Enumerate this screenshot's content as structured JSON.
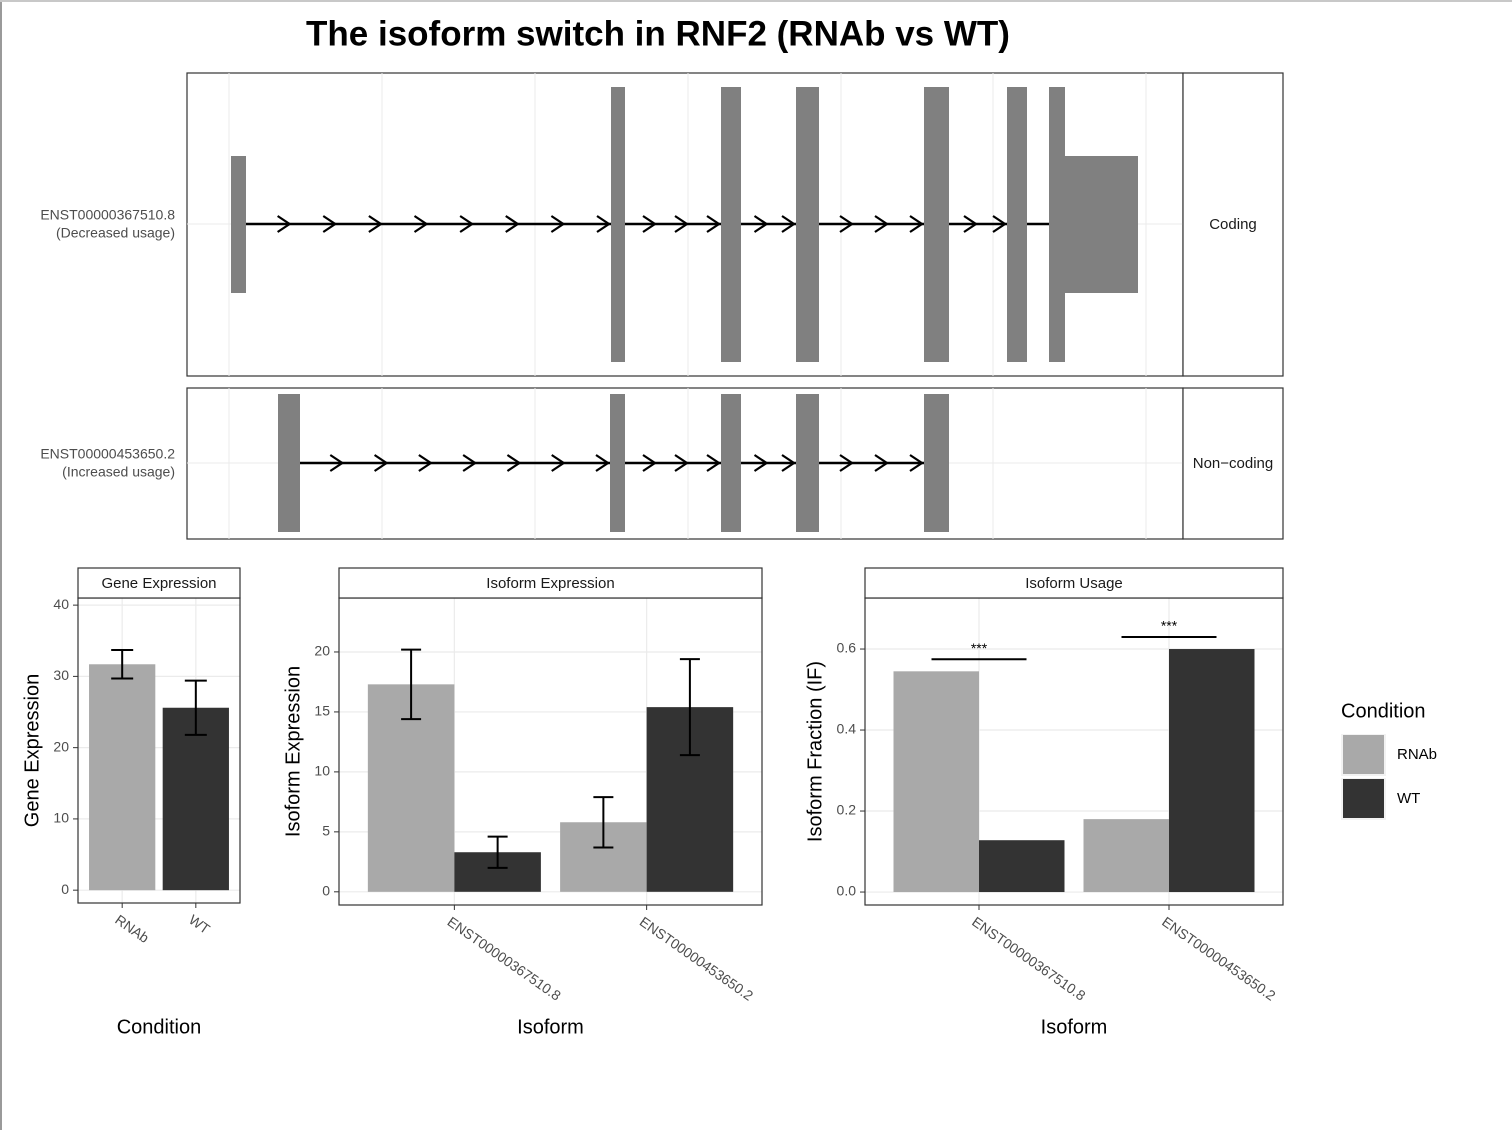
{
  "title": "The isoform switch in RNF2 (RNAb vs WT)",
  "transcripts": [
    {
      "name": "ENST00000367510.8",
      "usage": "(Decreased usage)",
      "type": "Coding"
    },
    {
      "name": "ENST00000453650.2",
      "usage": "(Increased usage)",
      "type": "Non−coding"
    }
  ],
  "chart_data": [
    {
      "type": "bar",
      "title": "Gene Expression",
      "xlabel": "Condition",
      "ylabel": "Gene Expression",
      "categories": [
        "RNAb",
        "WT"
      ],
      "values": [
        31.7,
        25.6
      ],
      "errors": [
        2.0,
        3.8
      ],
      "colors": [
        "#a9a9a9",
        "#333333"
      ],
      "ylim": [
        -1.8,
        41
      ],
      "yticks": [
        0,
        10,
        20,
        30,
        40
      ],
      "grid": true
    },
    {
      "type": "grouped_bar",
      "title": "Isoform Expression",
      "xlabel": "Isoform",
      "ylabel": "Isoform Expression",
      "categories": [
        "ENST00000367510.8",
        "ENST00000453650.2"
      ],
      "series": [
        {
          "name": "RNAb",
          "color": "#a9a9a9",
          "values": [
            17.3,
            5.8
          ],
          "errors": [
            2.9,
            2.1
          ]
        },
        {
          "name": "WT",
          "color": "#333333",
          "values": [
            3.3,
            15.4
          ],
          "errors": [
            1.3,
            4.0
          ]
        }
      ],
      "ylim": [
        -1.1,
        24.5
      ],
      "yticks": [
        0,
        5,
        10,
        15,
        20
      ],
      "grid": true
    },
    {
      "type": "grouped_bar",
      "title": "Isoform Usage",
      "xlabel": "Isoform",
      "ylabel": "Isoform Fraction (IF)",
      "categories": [
        "ENST00000367510.8",
        "ENST00000453650.2"
      ],
      "series": [
        {
          "name": "RNAb",
          "color": "#a9a9a9",
          "values": [
            0.545,
            0.18
          ]
        },
        {
          "name": "WT",
          "color": "#333333",
          "values": [
            0.128,
            0.6
          ]
        }
      ],
      "significance": [
        "***",
        "***"
      ],
      "ylim": [
        -0.032,
        0.726
      ],
      "yticks": [
        {
          "value": 0,
          "label": "0.0"
        },
        {
          "value": 0.2,
          "label": "0.2"
        },
        {
          "value": 0.4,
          "label": "0.4"
        },
        {
          "value": 0.6,
          "label": "0.6"
        }
      ],
      "grid": true,
      "legend": {
        "title": "Condition",
        "position": "right"
      }
    }
  ]
}
